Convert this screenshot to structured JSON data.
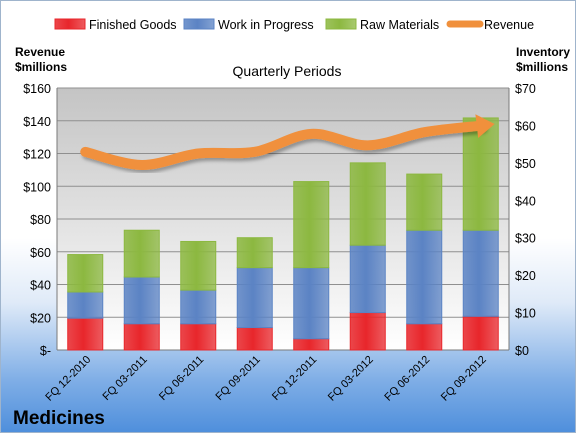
{
  "chart_data": {
    "type": "bar",
    "title": "Quarterly Periods",
    "footer_title": "Medicines",
    "left_axis_title_line1": "Revenue",
    "left_axis_title_line2": "$millions",
    "right_axis_title_line1": "Inventory",
    "right_axis_title_line2": "$millions",
    "categories": [
      "FQ 12-2010",
      "FQ 03-2011",
      "FQ 06-2011",
      "FQ 09-2011",
      "FQ 12-2011",
      "FQ 03-2012",
      "FQ 06-2012",
      "FQ 09-2012"
    ],
    "y_left_ticks": [
      "$-",
      "$20",
      "$40",
      "$60",
      "$80",
      "$100",
      "$120",
      "$140",
      "$160"
    ],
    "y_right_ticks": [
      "$0",
      "$10",
      "$20",
      "$30",
      "$40",
      "$50",
      "$60",
      "$70"
    ],
    "ylim_left": [
      0,
      160
    ],
    "ylim_right": [
      0,
      70
    ],
    "legend_position": "top",
    "series": [
      {
        "name": "Finished Goods",
        "axis": "right",
        "color": "#e8262b",
        "values": [
          8.5,
          7,
          7,
          6,
          3,
          10,
          7,
          9
        ]
      },
      {
        "name": "Work in Progress",
        "axis": "right",
        "color": "#5b83c4",
        "values": [
          7,
          12.5,
          9,
          16,
          19,
          18,
          25,
          23
        ]
      },
      {
        "name": "Raw Materials",
        "axis": "right",
        "color": "#8cb840",
        "values": [
          10,
          12.5,
          13,
          8,
          23,
          22,
          15,
          30
        ]
      },
      {
        "name": "Revenue",
        "axis": "left",
        "type": "line",
        "color": "#f0903c",
        "values": [
          121,
          113,
          120,
          121,
          132,
          125,
          133,
          137
        ]
      }
    ]
  }
}
